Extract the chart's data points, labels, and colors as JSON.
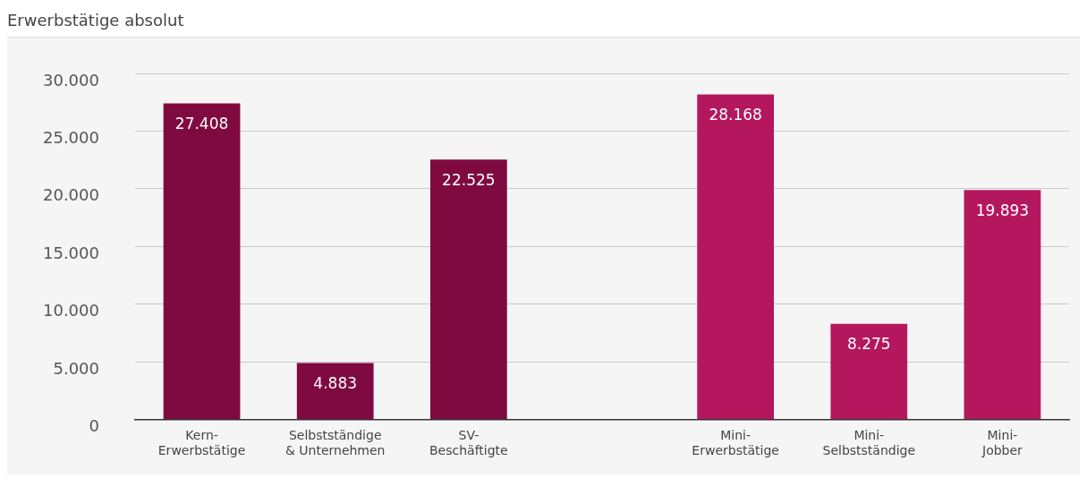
{
  "chart_data": {
    "type": "bar",
    "title": "Erwerbstätige absolut",
    "categories": [
      "Kern-\nErwerbstätige",
      "Selbstständige\n& Unternehmen",
      "SV-\nBeschäftigte",
      null,
      "Mini-\nErwerbstätige",
      "Mini-\nSelbstständige",
      "Mini-\nJobber"
    ],
    "values": [
      27408,
      4883,
      22525,
      null,
      28168,
      8275,
      19893
    ],
    "colors": [
      "#7f0a40",
      "#7f0a40",
      "#7f0a40",
      "#7f0a40",
      "#b5175f",
      "#b5175f",
      "#b5175f"
    ],
    "value_labels": [
      "27.408",
      "4.883",
      "22.525",
      null,
      "28.168",
      "8.275",
      "19.893"
    ],
    "ylim": [
      0,
      30000
    ],
    "yticks": [
      {
        "value": 0,
        "label": "0"
      },
      {
        "value": 5000,
        "label": "5.000"
      },
      {
        "value": 10000,
        "label": "10.000"
      },
      {
        "value": 15000,
        "label": "15.000"
      },
      {
        "value": 20000,
        "label": "20.000"
      },
      {
        "value": 25000,
        "label": "25.000"
      },
      {
        "value": 30000,
        "label": "30.000"
      }
    ],
    "grid": "y",
    "legend": false
  }
}
